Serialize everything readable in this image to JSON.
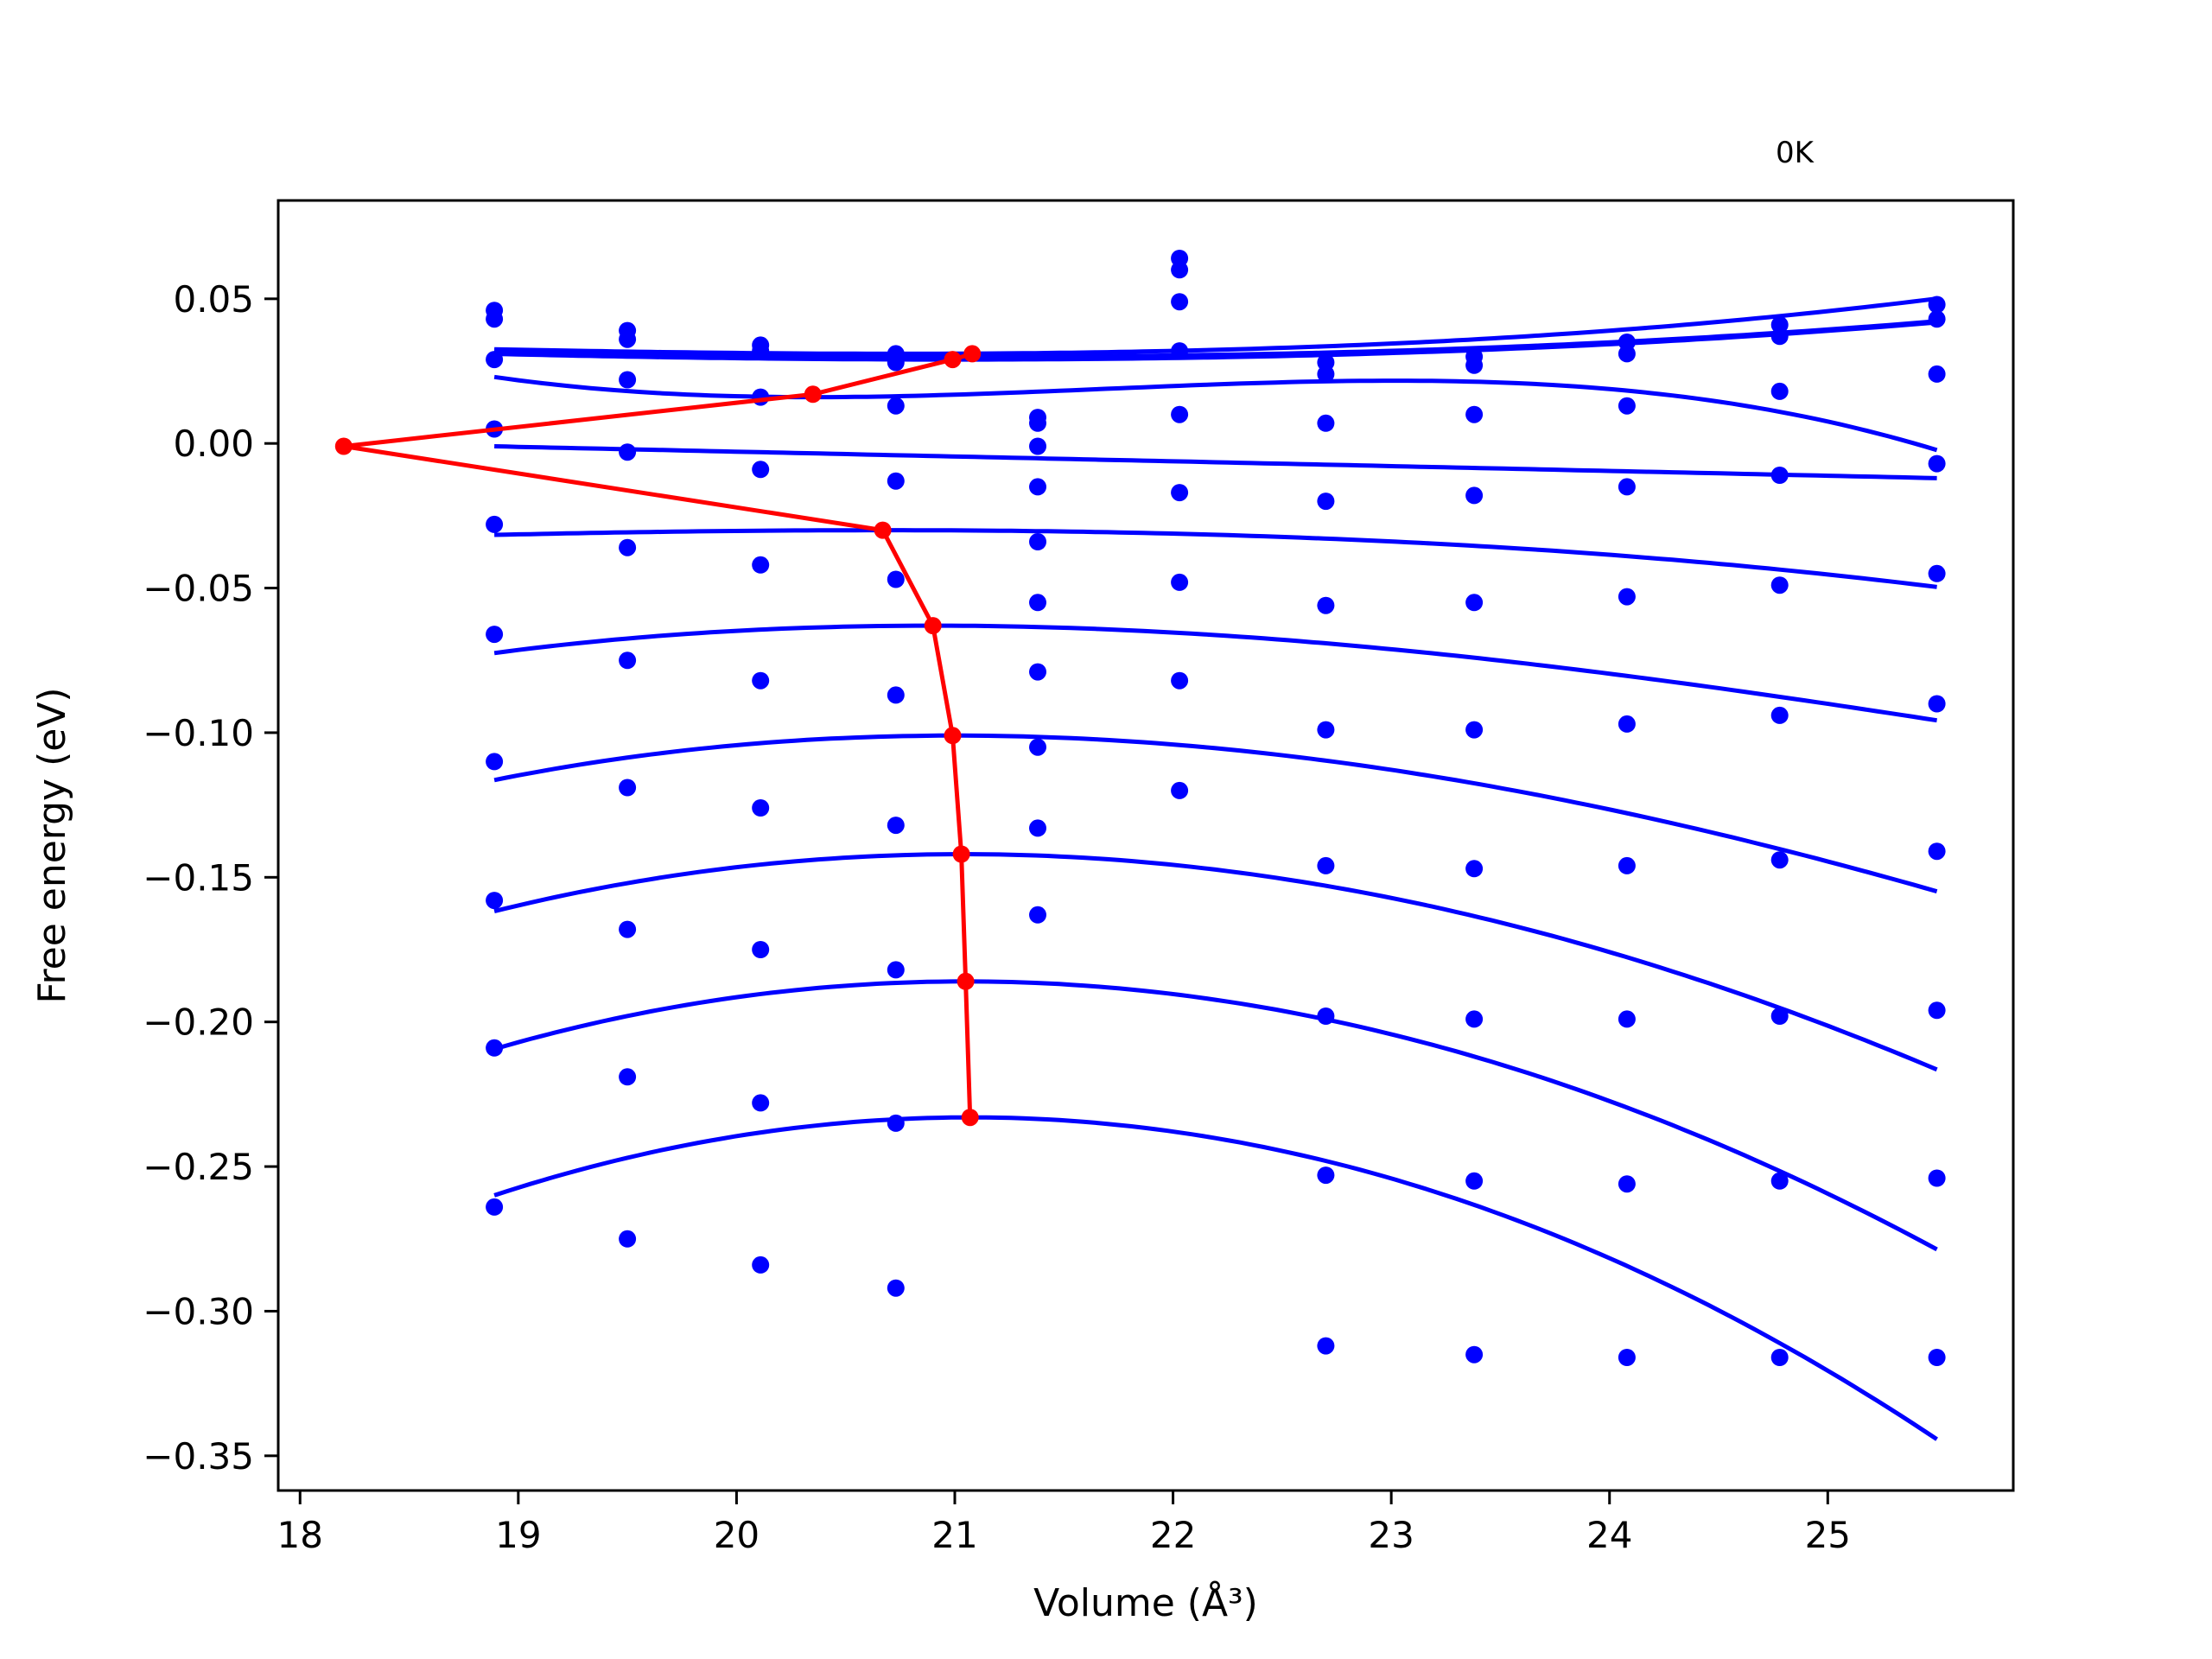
{
  "chart_data": {
    "type": "line",
    "title": "",
    "annotation": "0K",
    "xlabel": "Volume (Å³)",
    "ylabel": "Free energy (eV)",
    "xlim": [
      17.9,
      25.85
    ],
    "ylim": [
      -0.362,
      0.084
    ],
    "xticks": [
      18,
      19,
      20,
      21,
      22,
      23,
      24,
      25
    ],
    "xtick_labels": [
      "18",
      "19",
      "20",
      "21",
      "22",
      "23",
      "24",
      "25"
    ],
    "yticks": [
      0.05,
      0.0,
      -0.05,
      -0.1,
      -0.15,
      -0.2,
      -0.25,
      -0.3,
      -0.35
    ],
    "ytick_labels": [
      "0.05",
      "0.00",
      "−0.05",
      "−0.10",
      "−0.15",
      "−0.20",
      "−0.25",
      "−0.30",
      "−0.35"
    ],
    "grid": false,
    "colors": {
      "points": "#0000ff",
      "fits": "#0000ff",
      "minima": "#ff0000"
    },
    "scatter_x": [
      18.89,
      19.5,
      20.11,
      20.73,
      21.38,
      22.03,
      22.7,
      23.38,
      24.08,
      24.78,
      25.5
    ],
    "scatter_series": [
      [
        0.046,
        0.039,
        0.034,
        0.031,
        null,
        0.064,
        0.028,
        0.03,
        0.035,
        0.041,
        0.048
      ],
      [
        0.043,
        0.036,
        0.032,
        0.028,
        null,
        0.06,
        0.024,
        0.027,
        0.031,
        0.037,
        0.043
      ],
      [
        0.029,
        0.022,
        0.016,
        0.013,
        0.009,
        0.049,
        0.007,
        0.01,
        0.013,
        0.018,
        0.024
      ],
      [
        0.005,
        -0.003,
        -0.009,
        -0.013,
        0.007,
        0.032,
        -0.02,
        -0.018,
        -0.015,
        -0.011,
        -0.007
      ],
      [
        -0.028,
        -0.036,
        -0.042,
        -0.047,
        -0.001,
        0.01,
        -0.056,
        -0.055,
        -0.053,
        -0.049,
        -0.045
      ],
      [
        -0.066,
        -0.075,
        -0.082,
        -0.087,
        -0.015,
        -0.017,
        -0.099,
        -0.099,
        -0.097,
        -0.094,
        -0.09
      ],
      [
        -0.11,
        -0.119,
        -0.126,
        -0.132,
        -0.034,
        -0.048,
        -0.146,
        -0.147,
        -0.146,
        -0.144,
        -0.141
      ],
      [
        -0.158,
        -0.168,
        -0.175,
        -0.182,
        -0.055,
        -0.082,
        -0.198,
        -0.199,
        -0.199,
        -0.198,
        -0.196
      ],
      [
        -0.209,
        -0.219,
        -0.228,
        -0.235,
        -0.079,
        -0.12,
        -0.253,
        -0.255,
        -0.256,
        -0.255,
        -0.254
      ],
      [
        -0.264,
        -0.275,
        -0.284,
        -0.292,
        -0.105,
        null,
        -0.312,
        -0.315,
        -0.316,
        -0.316,
        -0.316
      ],
      [
        null,
        null,
        null,
        null,
        -0.133,
        null,
        null,
        null,
        null,
        null,
        null
      ],
      [
        null,
        null,
        null,
        null,
        -0.163,
        null,
        null,
        null,
        null,
        null,
        null
      ]
    ],
    "fit_curves": [
      {
        "x0": 20.75,
        "y0": 0.031,
        "a": 0.00056,
        "b": 6e-05
      },
      {
        "x0": 21.0,
        "y0": 0.029,
        "a": 0.0005,
        "b": 3e-05
      },
      {
        "x0": 21.1,
        "y0": 0.03,
        "a": 0.0005,
        "b": 3e-05
      },
      {
        "x0": 20.35,
        "y0": 0.016,
        "a": 0.0024,
        "b": -0.0006
      },
      {
        "x0": 18.2,
        "y0": -0.001,
        "a": 0.0,
        "b": 0.0
      },
      {
        "x0": 20.67,
        "y0": -0.03,
        "a": -0.0006,
        "b": -5e-05
      },
      {
        "x0": 20.9,
        "y0": -0.063,
        "a": -0.0021,
        "b": 0.00012
      },
      {
        "x0": 21.0,
        "y0": -0.101,
        "a": -0.0032,
        "b": 0.00012
      },
      {
        "x0": 21.04,
        "y0": -0.142,
        "a": -0.0041,
        "b": 8e-05
      },
      {
        "x0": 21.05,
        "y0": -0.186,
        "a": -0.0049,
        "b": 5e-05
      },
      {
        "x0": 21.07,
        "y0": -0.233,
        "a": -0.00567,
        "b": 0.0
      }
    ],
    "fit_x_range": [
      18.89,
      25.5
    ],
    "linear_fit": {
      "x_start": 18.89,
      "y_start": -0.001,
      "x_end": 25.5,
      "y_end": -0.012
    },
    "minima_path": {
      "x": [
        21.08,
        20.99,
        20.35,
        18.2,
        20.67,
        20.9,
        20.99,
        21.03,
        21.05,
        21.07
      ],
      "y": [
        0.031,
        0.029,
        0.017,
        -0.001,
        -0.03,
        -0.063,
        -0.101,
        -0.142,
        -0.186,
        -0.233
      ]
    }
  }
}
